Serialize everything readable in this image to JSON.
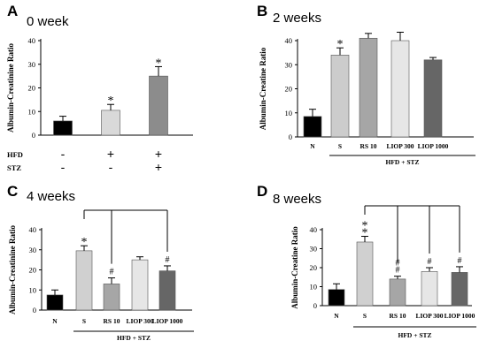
{
  "chart_data": [
    {
      "type": "bar",
      "panel": "A",
      "title": "0 week",
      "ylabel": "Albumin-Creatinine Ratio",
      "ylim": [
        0,
        40
      ],
      "yticks": [
        0,
        10,
        20,
        30,
        40
      ],
      "categories": [
        "",
        "",
        ""
      ],
      "values": [
        6,
        10.5,
        25
      ],
      "errors": [
        2,
        2.5,
        4
      ],
      "colors": [
        "#000000",
        "#d9d9d9",
        "#8c8c8c"
      ],
      "significance": [
        "",
        "*",
        "*"
      ],
      "treatment_rows": [
        {
          "label": "HFD",
          "marks": [
            "-",
            "+",
            "+"
          ]
        },
        {
          "label": "STZ",
          "marks": [
            "-",
            "-",
            "+"
          ]
        }
      ]
    },
    {
      "type": "bar",
      "panel": "B",
      "title": "2 weeks",
      "ylabel": "Albumin-Creatine Ratio",
      "ylim": [
        0,
        40
      ],
      "yticks": [
        0,
        10,
        20,
        30,
        40
      ],
      "categories": [
        "N",
        "S",
        "RS 10",
        "LIOP 300",
        "LIOP 1000"
      ],
      "values": [
        8.5,
        34,
        41,
        40,
        32
      ],
      "errors": [
        3,
        3,
        2,
        3.5,
        1
      ],
      "colors": [
        "#000000",
        "#cccccc",
        "#a6a6a6",
        "#e6e6e6",
        "#666666"
      ],
      "significance": [
        "",
        "*",
        "",
        "",
        ""
      ],
      "group_label": "HFD + STZ"
    },
    {
      "type": "bar",
      "panel": "C",
      "title": "4 weeks",
      "ylabel": "Albumin-Creatinine Ratio",
      "ylim": [
        0,
        40
      ],
      "yticks": [
        0,
        10,
        20,
        30,
        40
      ],
      "categories": [
        "N",
        "S",
        "RS 10",
        "LIOP 300",
        "LIOP 1000"
      ],
      "values": [
        7.5,
        29.5,
        13,
        25,
        19.5
      ],
      "errors": [
        2.5,
        2.5,
        3,
        1.5,
        2.5
      ],
      "colors": [
        "#000000",
        "#d0d0d0",
        "#a6a6a6",
        "#e6e6e6",
        "#666666"
      ],
      "significance": [
        "",
        "*",
        "#",
        "",
        "#"
      ],
      "group_label": "HFD + STZ"
    },
    {
      "type": "bar",
      "panel": "D",
      "title": "8 weeks",
      "ylabel": "Albumin-Creatine Ratio",
      "ylim": [
        0,
        40
      ],
      "yticks": [
        0,
        10,
        20,
        30,
        40
      ],
      "categories": [
        "N",
        "S",
        "RS 10",
        "LIOP 300",
        "LIOP 1000"
      ],
      "values": [
        8.5,
        33.5,
        14,
        18,
        17.5
      ],
      "errors": [
        3,
        3,
        1.5,
        2,
        3
      ],
      "colors": [
        "#000000",
        "#d0d0d0",
        "#a6a6a6",
        "#e6e6e6",
        "#666666"
      ],
      "significance": [
        "",
        "**",
        "##",
        "#",
        "#"
      ],
      "group_label": "HFD + STZ"
    }
  ]
}
